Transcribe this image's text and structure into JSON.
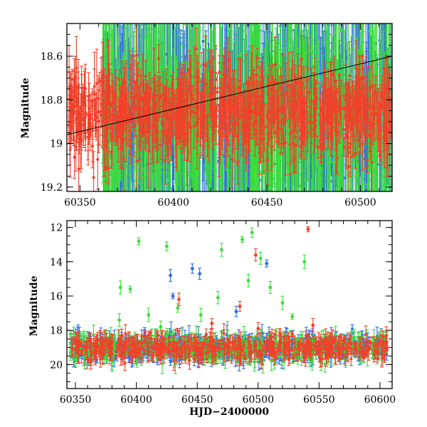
{
  "chart_data": [
    {
      "type": "scatter",
      "panel": "top",
      "title": "",
      "xlabel": "",
      "ylabel": "Magnitude",
      "xlim": [
        60343,
        60517
      ],
      "ylim": [
        19.22,
        18.45
      ],
      "y_inverted": true,
      "grid": false,
      "legend": "none",
      "xticks": [
        60350,
        60400,
        60450,
        60500
      ],
      "yticks": [
        18.6,
        18.8,
        19,
        19.2
      ],
      "ytick_labels": [
        "18.6",
        "18.8",
        "19",
        "19.2"
      ],
      "series": [
        {
          "color": "#2e6be6",
          "dense_range": [
            60360,
            60517
          ],
          "center": 18.9,
          "typical_error": 0.3
        },
        {
          "color": "#3ddc3d",
          "dense_range": [
            60360,
            60517
          ],
          "center": 18.9,
          "typical_error": 0.3
        },
        {
          "color": "#f0412a",
          "dense_range": [
            60344,
            60517
          ],
          "center": 18.85,
          "typical_error": 0.12
        }
      ],
      "trend_line": {
        "x": [
          60343,
          60517
        ],
        "y": [
          18.96,
          18.6
        ]
      }
    },
    {
      "type": "scatter",
      "panel": "bottom",
      "title": "",
      "xlabel": "HJD−2400000",
      "ylabel": "Magnitude",
      "xlim": [
        60343,
        60610
      ],
      "ylim": [
        21.4,
        11.6
      ],
      "y_inverted": true,
      "grid": false,
      "legend": "none",
      "xticks": [
        60350,
        60400,
        60450,
        60500,
        60550,
        60600
      ],
      "yticks": [
        12,
        14,
        16,
        18,
        20
      ],
      "ytick_labels": [
        "12",
        "14",
        "16",
        "18",
        "20"
      ],
      "series": [
        {
          "color": "#2e6be6",
          "band_center": 19.0,
          "outliers": [
            {
              "x": 60428,
              "y": 14.8
            },
            {
              "x": 60446,
              "y": 14.4
            },
            {
              "x": 60452,
              "y": 14.7
            },
            {
              "x": 60430,
              "y": 16.0
            },
            {
              "x": 60482,
              "y": 16.9
            },
            {
              "x": 60507,
              "y": 14.1
            }
          ]
        },
        {
          "color": "#3ddc3d",
          "band_center": 19.0,
          "outliers": [
            {
              "x": 60387,
              "y": 15.5
            },
            {
              "x": 60395,
              "y": 15.6
            },
            {
              "x": 60402,
              "y": 12.8
            },
            {
              "x": 60425,
              "y": 13.1
            },
            {
              "x": 60470,
              "y": 13.3
            },
            {
              "x": 60487,
              "y": 12.7
            },
            {
              "x": 60492,
              "y": 15.1
            },
            {
              "x": 60495,
              "y": 12.3
            },
            {
              "x": 60502,
              "y": 13.8
            },
            {
              "x": 60510,
              "y": 15.5
            },
            {
              "x": 60520,
              "y": 16.4
            },
            {
              "x": 60538,
              "y": 14.0
            },
            {
              "x": 60467,
              "y": 16.1
            },
            {
              "x": 60386,
              "y": 17.4
            },
            {
              "x": 60410,
              "y": 17.1
            },
            {
              "x": 60528,
              "y": 17.2
            },
            {
              "x": 60434,
              "y": 16.7
            },
            {
              "x": 60453,
              "y": 17.1
            },
            {
              "x": 60375,
              "y": 18.2
            },
            {
              "x": 60420,
              "y": 17.8
            }
          ]
        },
        {
          "color": "#f0412a",
          "band_center": 19.0,
          "outliers": [
            {
              "x": 60541,
              "y": 12.1
            },
            {
              "x": 60498,
              "y": 13.6
            },
            {
              "x": 60435,
              "y": 16.2
            },
            {
              "x": 60485,
              "y": 16.6
            },
            {
              "x": 60545,
              "y": 17.7
            },
            {
              "x": 60462,
              "y": 17.6
            },
            {
              "x": 60500,
              "y": 17.9
            }
          ]
        }
      ]
    }
  ]
}
